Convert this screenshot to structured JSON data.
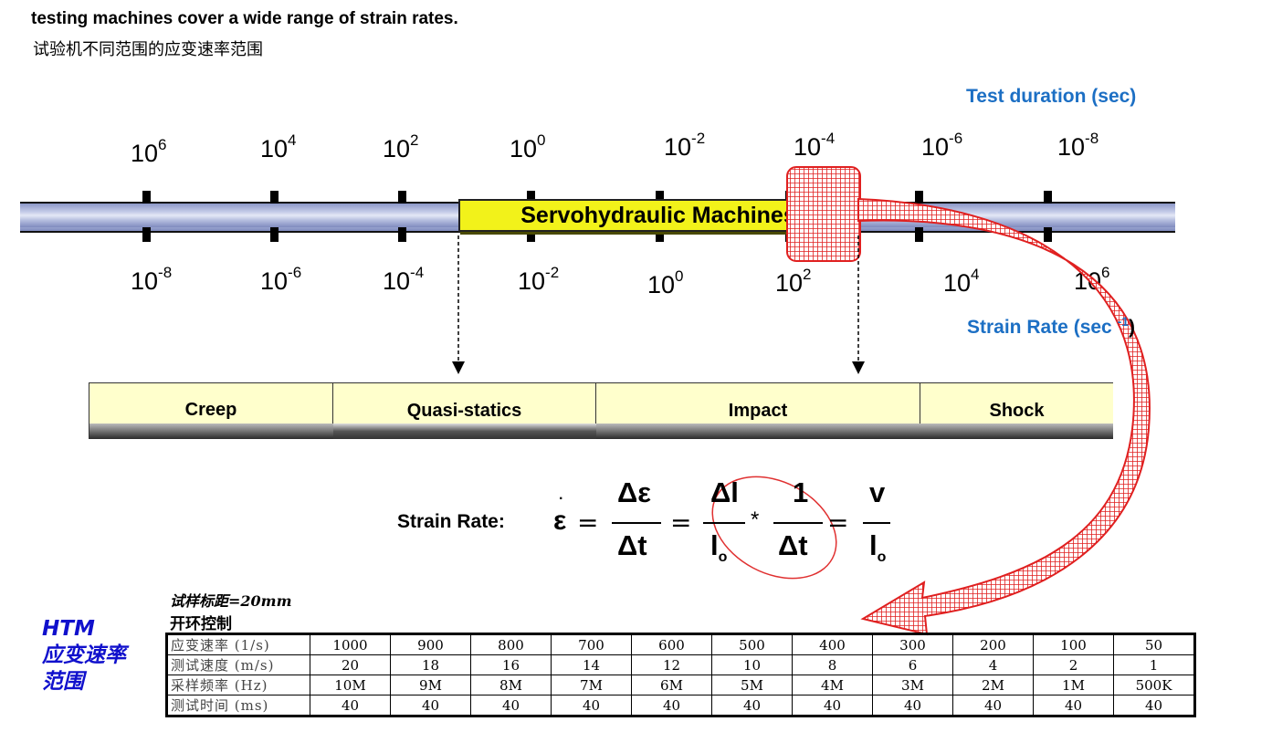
{
  "header": {
    "title": "testing machines cover a wide range of strain rates.",
    "subtitle": "试验机不同范围的应变速率范围"
  },
  "axis": {
    "top_label": "Test duration (sec)",
    "bottom_label": "Strain Rate (sec",
    "bottom_label_exp": "-1",
    "bottom_label_close": ")",
    "top_ticks": [
      {
        "base": "10",
        "exp": "6"
      },
      {
        "base": "10",
        "exp": "4"
      },
      {
        "base": "10",
        "exp": "2"
      },
      {
        "base": "10",
        "exp": "0"
      },
      {
        "base": "10",
        "exp": "-2"
      },
      {
        "base": "10",
        "exp": "-4"
      },
      {
        "base": "10",
        "exp": "-6"
      },
      {
        "base": "10",
        "exp": "-8"
      }
    ],
    "bottom_ticks": [
      {
        "base": "10",
        "exp": "-8"
      },
      {
        "base": "10",
        "exp": "-6"
      },
      {
        "base": "10",
        "exp": "-4"
      },
      {
        "base": "10",
        "exp": "-2"
      },
      {
        "base": "10",
        "exp": "0"
      },
      {
        "base": "10",
        "exp": "2"
      },
      {
        "base": "10",
        "exp": "4"
      },
      {
        "base": "10",
        "exp": "6"
      }
    ],
    "machine_label": "Servohydraulic Machines"
  },
  "categories": [
    "Creep",
    "Quasi-statics",
    "Impact",
    "Shock"
  ],
  "equation": {
    "label": "Strain Rate:",
    "epsilon": "ε",
    "eq": "=",
    "frac1_num": "Δε",
    "frac1_den": "Δt",
    "frac2_num": "Δl",
    "frac2_den": "l",
    "frac2_den_sub": "o",
    "times": "*",
    "frac3_num": "1",
    "frac3_den": "Δt",
    "frac4_num": "v",
    "frac4_den": "l",
    "frac4_den_sub": "o"
  },
  "side_label": {
    "line1": "HTM",
    "line2": "应变速率",
    "line3": "范围"
  },
  "table": {
    "note1": "试样标距=20mm",
    "note2": "开环控制",
    "rows": [
      {
        "head": "应变速率 (1/s)",
        "values": [
          "1000",
          "900",
          "800",
          "700",
          "600",
          "500",
          "400",
          "300",
          "200",
          "100",
          "50"
        ]
      },
      {
        "head": "测试速度 (m/s)",
        "values": [
          "20",
          "18",
          "16",
          "14",
          "12",
          "10",
          "8",
          "6",
          "4",
          "2",
          "1"
        ]
      },
      {
        "head": "采样频率 (Hz)",
        "values": [
          "10M",
          "9M",
          "8M",
          "7M",
          "6M",
          "5M",
          "4M",
          "3M",
          "2M",
          "1M",
          "500K"
        ]
      },
      {
        "head": "测试时间 (ms)",
        "values": [
          "40",
          "40",
          "40",
          "40",
          "40",
          "40",
          "40",
          "40",
          "40",
          "40",
          "40"
        ]
      }
    ]
  },
  "colors": {
    "accent_blue": "#1c6fc4",
    "htm_blue": "#1010cc",
    "machine_yellow": "#f2f21a",
    "category_fill": "#ffffcc",
    "highlight_red": "#e02020"
  }
}
